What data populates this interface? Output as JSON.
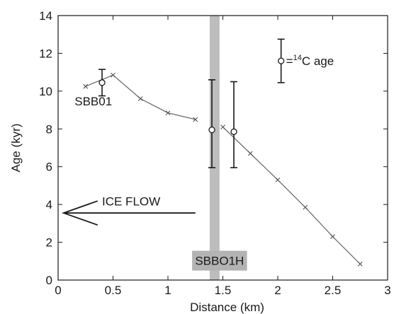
{
  "chart_data": {
    "type": "line",
    "xlabel": "Distance (km)",
    "ylabel": "Age (kyr)",
    "xlim": [
      0,
      3
    ],
    "ylim": [
      0,
      14
    ],
    "x_ticks": [
      0,
      0.5,
      1,
      1.5,
      2,
      2.5,
      3
    ],
    "x_tick_labels": [
      "0",
      "0.5",
      "1",
      "1.5",
      "2",
      "2.5",
      "3"
    ],
    "y_ticks": [
      0,
      2,
      4,
      6,
      8,
      10,
      12,
      14
    ],
    "y_tick_labels": [
      "0",
      "2",
      "4",
      "6",
      "8",
      "10",
      "12",
      "14"
    ],
    "grid": false,
    "series": [
      {
        "x": [
          0.25,
          0.5,
          0.75,
          1.0,
          1.25
        ],
        "y": [
          10.25,
          10.85,
          9.6,
          8.85,
          8.5
        ]
      },
      {
        "x": [
          1.5,
          1.75,
          2.0,
          2.25,
          2.5,
          2.75
        ],
        "y": [
          8.1,
          6.7,
          5.3,
          3.85,
          2.3,
          0.85
        ]
      }
    ],
    "c14_ages": [
      {
        "x": 0.4,
        "y": 10.45,
        "low": 9.75,
        "high": 11.15
      },
      {
        "x": 1.4,
        "y": 7.95,
        "low": 5.95,
        "high": 10.6
      },
      {
        "x": 1.6,
        "y": 7.85,
        "low": 5.95,
        "high": 10.5
      }
    ],
    "divide_band": {
      "x_from": 1.38,
      "x_to": 1.47
    },
    "legend": {
      "position": "top-right",
      "marker": {
        "x": 2.03,
        "y": 11.6,
        "low": 10.45,
        "high": 12.75
      },
      "label_prefix": "=",
      "label_superscript": "14",
      "label_main": "C age"
    },
    "annotations": {
      "sbb01_label": "SBB01",
      "ice_flow_label": "ICE FLOW",
      "sbbo1h_label": "SBBO1H"
    },
    "ice_flow_arrow": {
      "from_x": 1.25,
      "to_x": 0.05,
      "y": 3.55
    }
  }
}
